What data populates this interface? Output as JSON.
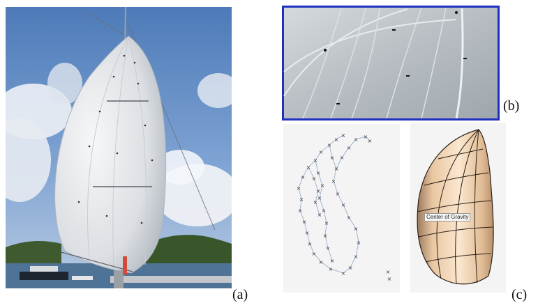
{
  "panels": {
    "a": {
      "label": "(a)"
    },
    "b": {
      "label": "(b)"
    },
    "c": {
      "label": "(c)"
    }
  },
  "model": {
    "annotation": "Center of Gravity"
  },
  "colors": {
    "sky": "#5e88c0",
    "sail": "#e9ecef",
    "frame_b": "#1f2fbf",
    "model_face": "#f0d2b1",
    "points": "#3a3a4a",
    "edges": "#8fa8c8"
  }
}
